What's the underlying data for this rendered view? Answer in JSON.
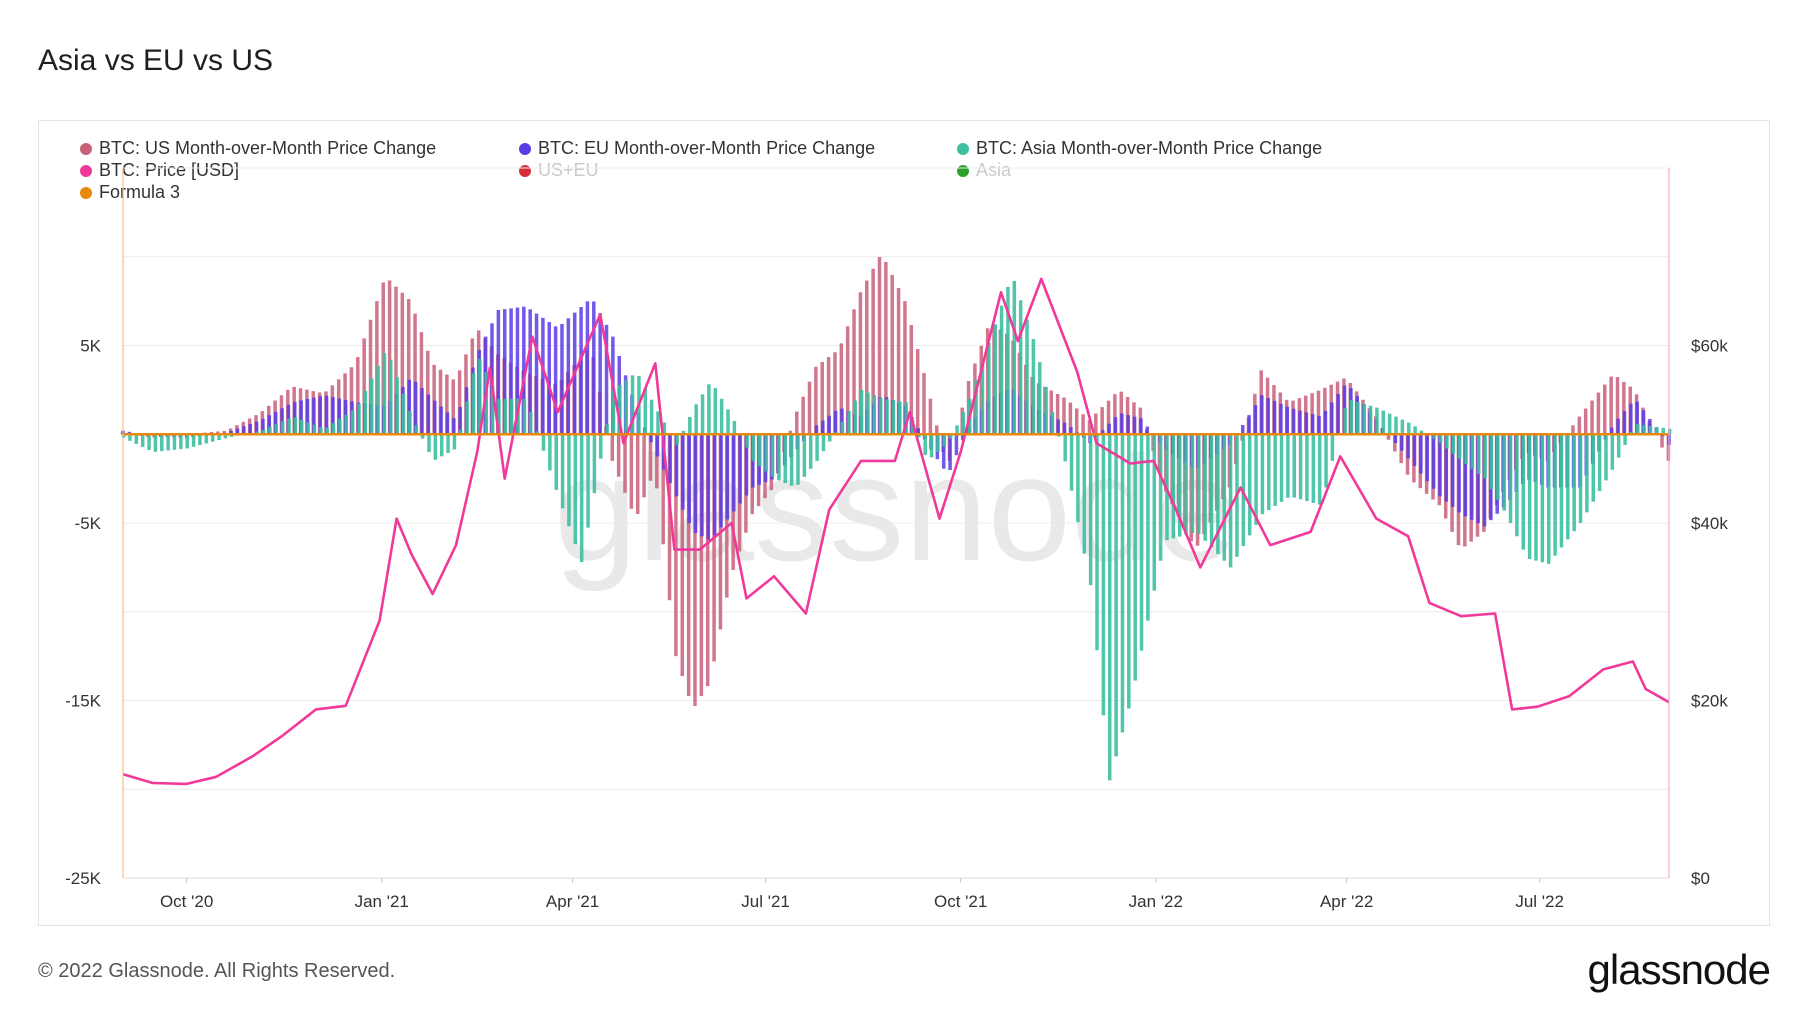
{
  "title": "Asia vs EU vs US",
  "footer": "© 2022 Glassnode. All Rights Reserved.",
  "brand": "glassnode",
  "legend": [
    {
      "label": "BTC: US Month-over-Month Price Change",
      "color": "#c9607a",
      "active": true
    },
    {
      "label": "BTC: EU Month-over-Month Price Change",
      "color": "#5b3be6",
      "active": true
    },
    {
      "label": "BTC: Asia Month-over-Month Price Change",
      "color": "#3dbfa0",
      "active": true
    },
    {
      "label": "BTC: Price [USD]",
      "color": "#f0399a",
      "active": true
    },
    {
      "label": "US+EU",
      "color": "#d62f3a",
      "active": false
    },
    {
      "label": "Asia",
      "color": "#2ca02c",
      "active": false
    },
    {
      "label": "Formula 3",
      "color": "#e8890c",
      "active": true
    }
  ],
  "chart_data": {
    "type": "bar",
    "watermark": "glassnode",
    "x_ticks": [
      "Oct '20",
      "Jan '21",
      "Apr '21",
      "Jul '21",
      "Oct '21",
      "Jan '22",
      "Apr '22",
      "Jul '22"
    ],
    "x_range": [
      "2020-09-01",
      "2022-08-31"
    ],
    "y_left": {
      "ticks": [
        "5K",
        "-5K",
        "-15K",
        "-25K"
      ],
      "tick_values": [
        5000,
        -5000,
        -15000,
        -25000
      ],
      "range": [
        -25000,
        15000
      ]
    },
    "y_right": {
      "ticks": [
        "$60k",
        "$40k",
        "$20k",
        "$0"
      ],
      "tick_values": [
        60000,
        40000,
        20000,
        0
      ],
      "range": [
        0,
        80000
      ]
    },
    "series": [
      {
        "name": "BTC: US Month-over-Month Price Change",
        "color": "#c9607a",
        "points": [
          [
            "2020-09-01",
            100
          ],
          [
            "2020-09-15",
            -200
          ],
          [
            "2020-10-01",
            0
          ],
          [
            "2020-10-20",
            200
          ],
          [
            "2020-11-05",
            1200
          ],
          [
            "2020-11-20",
            2700
          ],
          [
            "2020-12-05",
            2300
          ],
          [
            "2020-12-20",
            4000
          ],
          [
            "2021-01-03",
            8900
          ],
          [
            "2021-01-15",
            7500
          ],
          [
            "2021-01-25",
            4000
          ],
          [
            "2021-02-05",
            3000
          ],
          [
            "2021-02-15",
            6000
          ],
          [
            "2021-02-25",
            4500
          ],
          [
            "2021-03-10",
            3500
          ],
          [
            "2021-03-25",
            2800
          ],
          [
            "2021-04-10",
            5000
          ],
          [
            "2021-04-20",
            -1500
          ],
          [
            "2021-05-01",
            -4800
          ],
          [
            "2021-05-10",
            -2000
          ],
          [
            "2021-05-20",
            -12500
          ],
          [
            "2021-05-28",
            -15500
          ],
          [
            "2021-06-05",
            -14000
          ],
          [
            "2021-06-15",
            -8000
          ],
          [
            "2021-06-25",
            -4500
          ],
          [
            "2021-07-05",
            -3000
          ],
          [
            "2021-07-15",
            1000
          ],
          [
            "2021-07-25",
            3800
          ],
          [
            "2021-08-05",
            4800
          ],
          [
            "2021-08-15",
            8000
          ],
          [
            "2021-08-25",
            10200
          ],
          [
            "2021-09-05",
            7500
          ],
          [
            "2021-09-15",
            3000
          ],
          [
            "2021-09-25",
            -2000
          ],
          [
            "2021-10-05",
            3000
          ],
          [
            "2021-10-15",
            6300
          ],
          [
            "2021-10-25",
            5500
          ],
          [
            "2021-11-05",
            3000
          ],
          [
            "2021-11-20",
            2000
          ],
          [
            "2021-12-01",
            800
          ],
          [
            "2021-12-15",
            2500
          ],
          [
            "2021-12-25",
            1500
          ],
          [
            "2022-01-05",
            -3000
          ],
          [
            "2022-01-20",
            -6500
          ],
          [
            "2022-02-05",
            -3000
          ],
          [
            "2022-02-20",
            3600
          ],
          [
            "2022-03-05",
            1800
          ],
          [
            "2022-03-20",
            2500
          ],
          [
            "2022-04-01",
            3200
          ],
          [
            "2022-04-15",
            1000
          ],
          [
            "2022-05-01",
            -2500
          ],
          [
            "2022-05-15",
            -4000
          ],
          [
            "2022-05-25",
            -6500
          ],
          [
            "2022-06-05",
            -5500
          ],
          [
            "2022-06-15",
            -3000
          ],
          [
            "2022-06-25",
            -1000
          ],
          [
            "2022-07-05",
            -1500
          ],
          [
            "2022-07-20",
            1000
          ],
          [
            "2022-08-05",
            3400
          ],
          [
            "2022-08-15",
            2500
          ],
          [
            "2022-08-31",
            -1500
          ]
        ]
      },
      {
        "name": "BTC: EU Month-over-Month Price Change",
        "color": "#5b3be6",
        "points": [
          [
            "2020-09-01",
            200
          ],
          [
            "2020-09-15",
            -100
          ],
          [
            "2020-10-01",
            -200
          ],
          [
            "2020-10-20",
            100
          ],
          [
            "2020-11-05",
            800
          ],
          [
            "2020-11-20",
            1800
          ],
          [
            "2020-12-05",
            2200
          ],
          [
            "2020-12-20",
            1800
          ],
          [
            "2021-01-03",
            1600
          ],
          [
            "2021-01-15",
            3200
          ],
          [
            "2021-01-25",
            2000
          ],
          [
            "2021-02-05",
            800
          ],
          [
            "2021-02-15",
            4500
          ],
          [
            "2021-02-25",
            7000
          ],
          [
            "2021-03-10",
            7200
          ],
          [
            "2021-03-25",
            6000
          ],
          [
            "2021-04-10",
            7700
          ],
          [
            "2021-04-20",
            5500
          ],
          [
            "2021-05-01",
            1500
          ],
          [
            "2021-05-10",
            -1000
          ],
          [
            "2021-05-20",
            -3500
          ],
          [
            "2021-05-28",
            -5500
          ],
          [
            "2021-06-05",
            -6000
          ],
          [
            "2021-06-15",
            -4500
          ],
          [
            "2021-06-25",
            -3000
          ],
          [
            "2021-07-05",
            -2500
          ],
          [
            "2021-07-15",
            -1000
          ],
          [
            "2021-07-25",
            500
          ],
          [
            "2021-08-05",
            1500
          ],
          [
            "2021-08-15",
            1000
          ],
          [
            "2021-08-25",
            2200
          ],
          [
            "2021-09-05",
            1600
          ],
          [
            "2021-09-15",
            -500
          ],
          [
            "2021-09-25",
            -2300
          ],
          [
            "2021-10-05",
            500
          ],
          [
            "2021-10-15",
            2000
          ],
          [
            "2021-10-25",
            2600
          ],
          [
            "2021-11-05",
            1500
          ],
          [
            "2021-11-20",
            600
          ],
          [
            "2021-12-01",
            -500
          ],
          [
            "2021-12-15",
            1200
          ],
          [
            "2021-12-25",
            900
          ],
          [
            "2022-01-05",
            -800
          ],
          [
            "2022-01-20",
            -2000
          ],
          [
            "2022-02-05",
            -600
          ],
          [
            "2022-02-20",
            2200
          ],
          [
            "2022-03-05",
            1500
          ],
          [
            "2022-03-20",
            1000
          ],
          [
            "2022-04-01",
            2900
          ],
          [
            "2022-04-15",
            800
          ],
          [
            "2022-05-01",
            -1500
          ],
          [
            "2022-05-15",
            -3500
          ],
          [
            "2022-05-25",
            -4500
          ],
          [
            "2022-06-05",
            -5200
          ],
          [
            "2022-06-15",
            -4000
          ],
          [
            "2022-06-25",
            -2500
          ],
          [
            "2022-07-05",
            -3000
          ],
          [
            "2022-07-20",
            -3000
          ],
          [
            "2022-08-05",
            600
          ],
          [
            "2022-08-15",
            2000
          ],
          [
            "2022-08-31",
            -600
          ]
        ]
      },
      {
        "name": "BTC: Asia Month-over-Month Price Change",
        "color": "#3dbfa0",
        "points": [
          [
            "2020-09-01",
            -200
          ],
          [
            "2020-09-15",
            -1000
          ],
          [
            "2020-10-01",
            -800
          ],
          [
            "2020-10-20",
            -200
          ],
          [
            "2020-11-05",
            200
          ],
          [
            "2020-11-20",
            1000
          ],
          [
            "2020-12-05",
            300
          ],
          [
            "2020-12-20",
            1500
          ],
          [
            "2021-01-03",
            4800
          ],
          [
            "2021-01-15",
            1000
          ],
          [
            "2021-01-25",
            -1500
          ],
          [
            "2021-02-05",
            -800
          ],
          [
            "2021-02-15",
            4500
          ],
          [
            "2021-02-25",
            2000
          ],
          [
            "2021-03-10",
            2000
          ],
          [
            "2021-03-25",
            -3500
          ],
          [
            "2021-04-05",
            -7200
          ],
          [
            "2021-04-20",
            2500
          ],
          [
            "2021-05-01",
            3500
          ],
          [
            "2021-05-10",
            1500
          ],
          [
            "2021-05-20",
            -600
          ],
          [
            "2021-05-28",
            1500
          ],
          [
            "2021-06-05",
            3000
          ],
          [
            "2021-06-15",
            1000
          ],
          [
            "2021-06-25",
            -1500
          ],
          [
            "2021-07-05",
            -2500
          ],
          [
            "2021-07-15",
            -3000
          ],
          [
            "2021-07-25",
            -1500
          ],
          [
            "2021-08-05",
            500
          ],
          [
            "2021-08-15",
            2500
          ],
          [
            "2021-08-25",
            2000
          ],
          [
            "2021-09-05",
            1800
          ],
          [
            "2021-09-15",
            -1500
          ],
          [
            "2021-09-25",
            -500
          ],
          [
            "2021-10-05",
            2000
          ],
          [
            "2021-10-15",
            5500
          ],
          [
            "2021-10-25",
            9000
          ],
          [
            "2021-11-05",
            5000
          ],
          [
            "2021-11-20",
            -2000
          ],
          [
            "2021-12-01",
            -8500
          ],
          [
            "2021-12-10",
            -19500
          ],
          [
            "2021-12-20",
            -15000
          ],
          [
            "2022-01-05",
            -6000
          ],
          [
            "2022-01-20",
            -5500
          ],
          [
            "2022-02-05",
            -7500
          ],
          [
            "2022-02-20",
            -4500
          ],
          [
            "2022-03-05",
            -3500
          ],
          [
            "2022-03-20",
            -4000
          ],
          [
            "2022-04-01",
            2000
          ],
          [
            "2022-04-15",
            1500
          ],
          [
            "2022-05-01",
            600
          ],
          [
            "2022-05-15",
            -500
          ],
          [
            "2022-05-25",
            -1500
          ],
          [
            "2022-06-05",
            -2500
          ],
          [
            "2022-06-15",
            -4500
          ],
          [
            "2022-06-25",
            -7000
          ],
          [
            "2022-07-05",
            -7300
          ],
          [
            "2022-07-20",
            -5000
          ],
          [
            "2022-08-05",
            -1800
          ],
          [
            "2022-08-15",
            600
          ],
          [
            "2022-08-31",
            300
          ]
        ]
      },
      {
        "name": "BTC: Price [USD]",
        "color": "#f0399a",
        "axis": "right",
        "points": [
          [
            "2020-09-01",
            11700
          ],
          [
            "2020-09-15",
            10700
          ],
          [
            "2020-10-01",
            10600
          ],
          [
            "2020-10-15",
            11400
          ],
          [
            "2020-11-01",
            13700
          ],
          [
            "2020-11-15",
            16000
          ],
          [
            "2020-12-01",
            19000
          ],
          [
            "2020-12-15",
            19400
          ],
          [
            "2020-12-31",
            29000
          ],
          [
            "2021-01-08",
            40500
          ],
          [
            "2021-01-15",
            36500
          ],
          [
            "2021-01-25",
            32000
          ],
          [
            "2021-02-05",
            37500
          ],
          [
            "2021-02-15",
            48000
          ],
          [
            "2021-02-21",
            57500
          ],
          [
            "2021-02-28",
            45000
          ],
          [
            "2021-03-13",
            61000
          ],
          [
            "2021-03-25",
            52500
          ],
          [
            "2021-04-14",
            63500
          ],
          [
            "2021-04-25",
            49000
          ],
          [
            "2021-05-10",
            58000
          ],
          [
            "2021-05-19",
            37000
          ],
          [
            "2021-05-31",
            37000
          ],
          [
            "2021-06-15",
            40000
          ],
          [
            "2021-06-22",
            31500
          ],
          [
            "2021-07-05",
            34000
          ],
          [
            "2021-07-20",
            29800
          ],
          [
            "2021-07-31",
            41500
          ],
          [
            "2021-08-15",
            47000
          ],
          [
            "2021-08-31",
            47000
          ],
          [
            "2021-09-07",
            52500
          ],
          [
            "2021-09-21",
            40500
          ],
          [
            "2021-10-01",
            48000
          ],
          [
            "2021-10-20",
            66000
          ],
          [
            "2021-10-28",
            60500
          ],
          [
            "2021-11-08",
            67500
          ],
          [
            "2021-11-25",
            57000
          ],
          [
            "2021-12-04",
            49000
          ],
          [
            "2021-12-20",
            46700
          ],
          [
            "2021-12-31",
            47000
          ],
          [
            "2022-01-10",
            41800
          ],
          [
            "2022-01-22",
            35000
          ],
          [
            "2022-02-10",
            44000
          ],
          [
            "2022-02-24",
            37500
          ],
          [
            "2022-03-15",
            39000
          ],
          [
            "2022-03-29",
            47500
          ],
          [
            "2022-04-15",
            40500
          ],
          [
            "2022-04-30",
            38500
          ],
          [
            "2022-05-10",
            31000
          ],
          [
            "2022-05-25",
            29500
          ],
          [
            "2022-06-10",
            29800
          ],
          [
            "2022-06-18",
            19000
          ],
          [
            "2022-06-30",
            19300
          ],
          [
            "2022-07-15",
            20500
          ],
          [
            "2022-07-31",
            23500
          ],
          [
            "2022-08-14",
            24400
          ],
          [
            "2022-08-20",
            21300
          ],
          [
            "2022-08-31",
            19800
          ]
        ]
      },
      {
        "name": "Formula 3",
        "color": "#e8890c",
        "points": [
          [
            "2020-09-01",
            0
          ],
          [
            "2022-08-31",
            0
          ]
        ]
      }
    ]
  }
}
